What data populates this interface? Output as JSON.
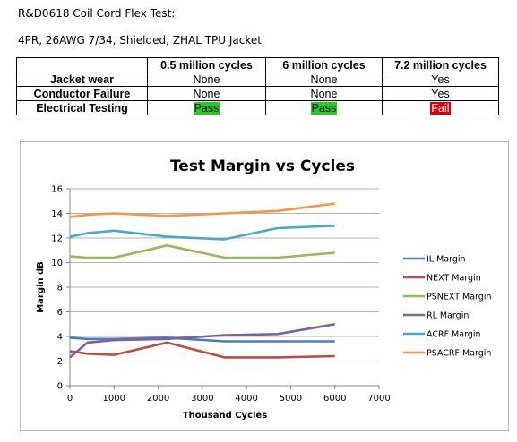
{
  "doc": {
    "title": "R&D0618 Coil Cord Flex Test:",
    "subtitle": "4PR, 26AWG 7/34, Shielded, ZHAL TPU Jacket"
  },
  "table": {
    "headers": [
      "",
      "0.5 million cycles",
      "6 million cycles",
      "7.2 million cycles"
    ],
    "rows": [
      {
        "label": "Jacket wear",
        "cells": [
          {
            "text": "None",
            "status": ""
          },
          {
            "text": "None",
            "status": ""
          },
          {
            "text": "Yes",
            "status": ""
          }
        ]
      },
      {
        "label": "Conductor Failure",
        "cells": [
          {
            "text": "None",
            "status": ""
          },
          {
            "text": "None",
            "status": ""
          },
          {
            "text": "Yes",
            "status": ""
          }
        ]
      },
      {
        "label": "Electrical Testing",
        "cells": [
          {
            "text": "Pass",
            "status": "pass"
          },
          {
            "text": "Pass",
            "status": "pass"
          },
          {
            "text": "Fail",
            "status": "fail"
          }
        ]
      }
    ],
    "pass_color": "#22cc22",
    "fail_color": "#dd0000"
  },
  "chart_data": {
    "type": "line",
    "title": "Test Margin vs Cycles",
    "xlabel": "Thousand Cycles",
    "ylabel": "Margin dB",
    "xlim": [
      0,
      7000
    ],
    "ylim": [
      0,
      16
    ],
    "xticks": [
      0,
      1000,
      2000,
      3000,
      4000,
      5000,
      6000,
      7000
    ],
    "yticks": [
      0,
      2,
      4,
      6,
      8,
      10,
      12,
      14,
      16
    ],
    "grid": "horizontal",
    "legend": "right",
    "series": [
      {
        "name": "IL Margin",
        "color": "#4a7ebb",
        "x": [
          0,
          400,
          1000,
          2200,
          3500,
          4700,
          6000
        ],
        "y": [
          3.9,
          3.8,
          3.8,
          3.9,
          3.6,
          3.6,
          3.6
        ]
      },
      {
        "name": "NEXT Margin",
        "color": "#be4b48",
        "x": [
          0,
          400,
          1000,
          2200,
          3500,
          4700,
          6000
        ],
        "y": [
          2.8,
          2.6,
          2.5,
          3.5,
          2.3,
          2.3,
          2.4
        ]
      },
      {
        "name": "PSNEXT Margin",
        "color": "#98b954",
        "x": [
          0,
          400,
          1000,
          2200,
          3500,
          4700,
          6000
        ],
        "y": [
          10.5,
          10.4,
          10.4,
          11.4,
          10.4,
          10.4,
          10.8
        ]
      },
      {
        "name": "RL Margin",
        "color": "#7d60a0",
        "x": [
          0,
          400,
          1000,
          2200,
          3500,
          4700,
          6000
        ],
        "y": [
          2.3,
          3.5,
          3.7,
          3.8,
          4.1,
          4.2,
          5.0
        ]
      },
      {
        "name": "ACRF Margin",
        "color": "#46aac5",
        "x": [
          0,
          400,
          1000,
          2200,
          3500,
          4700,
          6000
        ],
        "y": [
          12.1,
          12.4,
          12.6,
          12.1,
          11.9,
          12.8,
          13.0
        ]
      },
      {
        "name": "PSACRF Margin",
        "color": "#f79646",
        "x": [
          0,
          400,
          1000,
          2200,
          3500,
          4700,
          6000
        ],
        "y": [
          13.7,
          13.9,
          14.0,
          13.8,
          14.0,
          14.2,
          14.8
        ]
      }
    ]
  }
}
